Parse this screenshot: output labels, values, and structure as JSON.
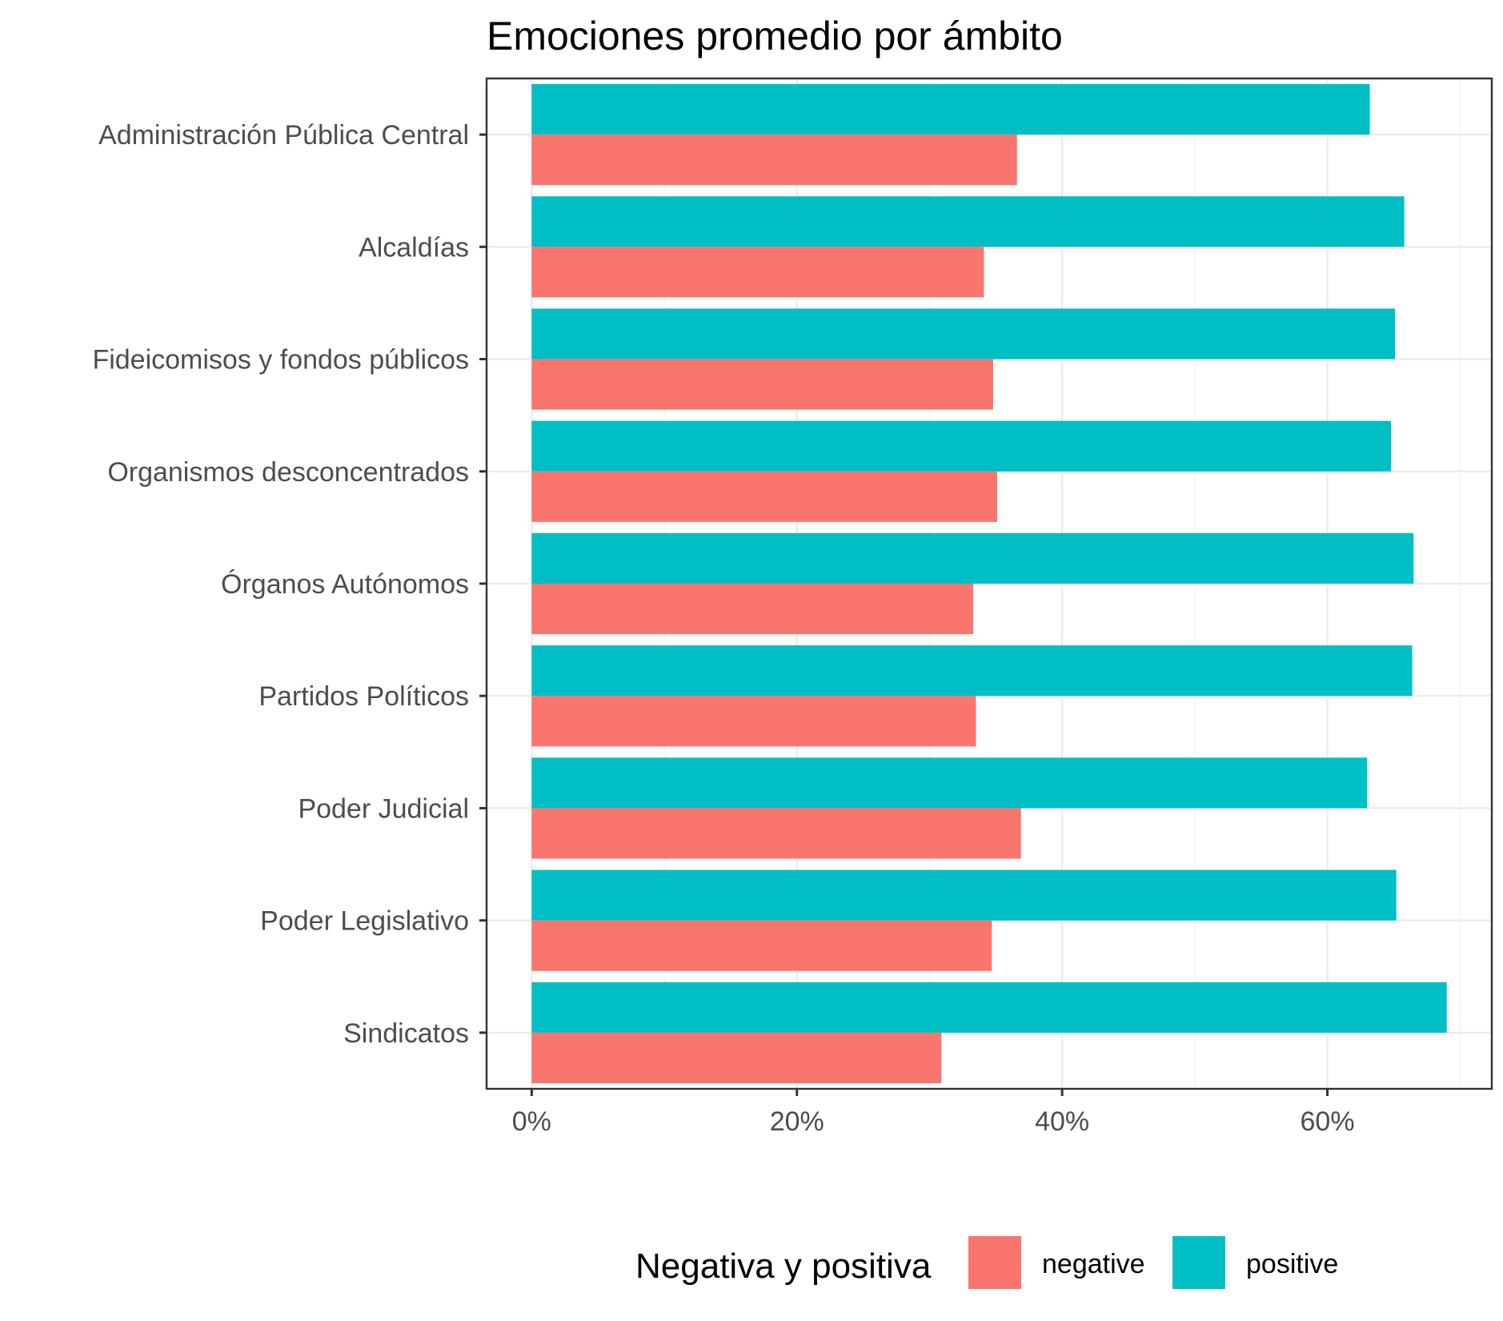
{
  "chart_data": {
    "type": "bar",
    "orientation": "horizontal",
    "title": "Emociones promedio por ámbito",
    "xlabel": "",
    "ylabel": "",
    "categories": [
      "Sindicatos",
      "Poder Legislativo",
      "Poder Judicial",
      "Partidos Políticos",
      "Órganos Autónomos",
      "Organismos desconcentrados",
      "Fideicomisos y fondos públicos",
      "Alcaldías",
      "Administración Pública Central"
    ],
    "series": [
      {
        "name": "positive",
        "color": "#00BFC4",
        "values": [
          0.69,
          0.652,
          0.63,
          0.664,
          0.665,
          0.648,
          0.651,
          0.658,
          0.632
        ]
      },
      {
        "name": "negative",
        "color": "#F8766D",
        "values": [
          0.309,
          0.347,
          0.369,
          0.335,
          0.333,
          0.351,
          0.348,
          0.341,
          0.366
        ]
      }
    ],
    "xlim": [
      -0.034,
      0.724
    ],
    "x_ticks": [
      {
        "value": 0,
        "label": "0%"
      },
      {
        "value": 0.2,
        "label": "20%"
      },
      {
        "value": 0.4,
        "label": "40%"
      },
      {
        "value": 0.6,
        "label": "60%"
      }
    ],
    "x_minor_ticks": [
      0.1,
      0.3,
      0.5,
      0.7
    ],
    "grid": true,
    "legend": {
      "title": "Negativa y positiva",
      "position": "bottom",
      "entries": [
        {
          "label": "negative",
          "color": "#F8766D"
        },
        {
          "label": "positive",
          "color": "#00BFC4"
        }
      ]
    }
  }
}
